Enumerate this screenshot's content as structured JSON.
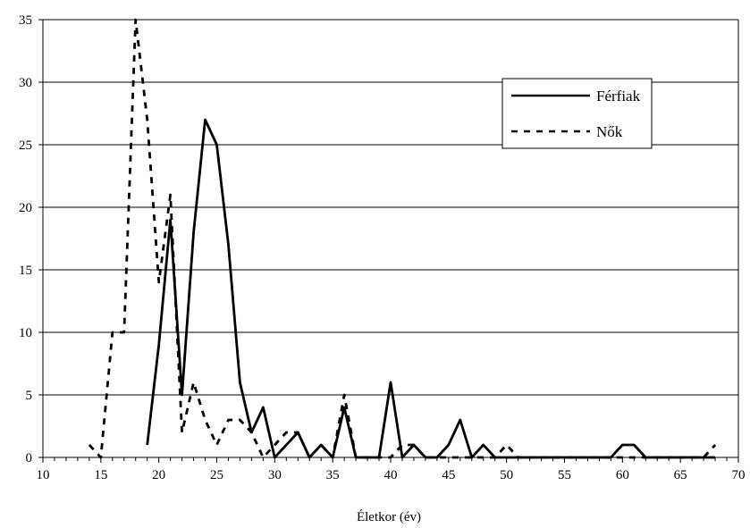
{
  "chart_data": {
    "type": "line",
    "title": "",
    "xlabel": "Életkor (év)",
    "ylabel": "",
    "xlim": [
      10,
      70
    ],
    "ylim": [
      0,
      35
    ],
    "x_ticks": [
      "10",
      "15",
      "20",
      "25",
      "30",
      "35",
      "40",
      "45",
      "50",
      "55",
      "60",
      "65",
      "70"
    ],
    "y_ticks": [
      "0",
      "5",
      "10",
      "15",
      "20",
      "25",
      "30",
      "35"
    ],
    "grid": "horizontal",
    "legend_position": "top-right",
    "series": [
      {
        "name": "Férfiak",
        "style": "solid",
        "color": "#000000",
        "x": [
          19,
          20,
          21,
          22,
          23,
          24,
          25,
          26,
          27,
          28,
          29,
          30,
          31,
          32,
          33,
          34,
          35,
          36,
          37,
          38,
          39,
          40,
          41,
          42,
          43,
          44,
          45,
          46,
          47,
          48,
          49,
          50,
          51,
          52,
          53,
          54,
          55,
          56,
          57,
          58,
          59,
          60,
          61,
          62,
          63,
          64,
          65,
          66,
          67,
          68
        ],
        "y": [
          1,
          9,
          19,
          5,
          18,
          27,
          25,
          17,
          6,
          2,
          4,
          0,
          1,
          2,
          0,
          1,
          0,
          4,
          0,
          0,
          0,
          6,
          0,
          1,
          0,
          0,
          1,
          3,
          0,
          1,
          0,
          0,
          0,
          0,
          0,
          0,
          0,
          0,
          0,
          0,
          0,
          1,
          1,
          0,
          0,
          0,
          0,
          0,
          0,
          0
        ]
      },
      {
        "name": "Nők",
        "style": "dashed",
        "color": "#000000",
        "x": [
          14,
          15,
          16,
          17,
          18,
          19,
          20,
          21,
          22,
          23,
          24,
          25,
          26,
          27,
          28,
          29,
          30,
          31,
          32,
          33,
          34,
          35,
          36,
          37,
          38,
          39,
          40,
          41,
          42,
          43,
          44,
          45,
          46,
          47,
          48,
          49,
          50,
          51,
          52,
          53,
          54,
          55,
          56,
          57,
          58,
          59,
          60,
          61,
          62,
          63,
          64,
          65,
          66,
          67,
          68
        ],
        "y": [
          1,
          0,
          10,
          10,
          35,
          27,
          14,
          21,
          2,
          6,
          3,
          1,
          3,
          3,
          2,
          0,
          1,
          2,
          2,
          0,
          1,
          0,
          5,
          0,
          0,
          0,
          0,
          1,
          1,
          0,
          0,
          0,
          0,
          0,
          0,
          0,
          1,
          0,
          0,
          0,
          0,
          0,
          0,
          0,
          0,
          0,
          0,
          0,
          0,
          0,
          0,
          0,
          0,
          0,
          1
        ]
      }
    ]
  }
}
